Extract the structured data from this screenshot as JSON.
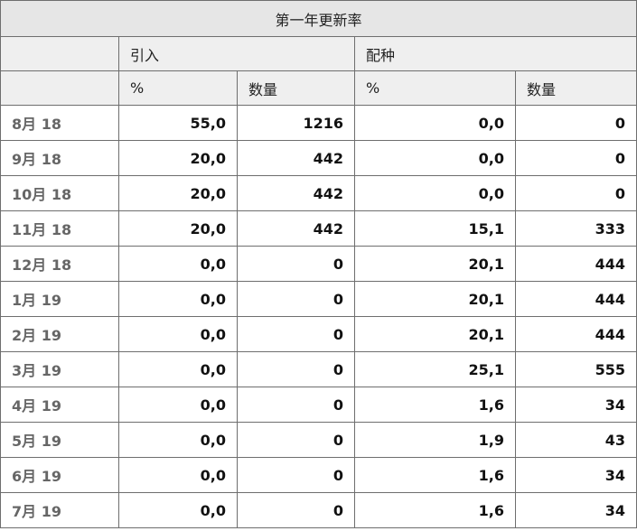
{
  "table": {
    "title": "第一年更新率",
    "group_headers": [
      "引入",
      "配种"
    ],
    "sub_headers": [
      "%",
      "数量",
      "%",
      "数量"
    ],
    "rows": [
      {
        "month": "8月 18",
        "values": [
          "55,0",
          "1216",
          "0,0",
          "0"
        ]
      },
      {
        "month": "9月 18",
        "values": [
          "20,0",
          "442",
          "0,0",
          "0"
        ]
      },
      {
        "month": "10月 18",
        "values": [
          "20,0",
          "442",
          "0,0",
          "0"
        ]
      },
      {
        "month": "11月 18",
        "values": [
          "20,0",
          "442",
          "15,1",
          "333"
        ]
      },
      {
        "month": "12月 18",
        "values": [
          "0,0",
          "0",
          "20,1",
          "444"
        ]
      },
      {
        "month": "1月 19",
        "values": [
          "0,0",
          "0",
          "20,1",
          "444"
        ]
      },
      {
        "month": "2月 19",
        "values": [
          "0,0",
          "0",
          "20,1",
          "444"
        ]
      },
      {
        "month": "3月 19",
        "values": [
          "0,0",
          "0",
          "25,1",
          "555"
        ]
      },
      {
        "month": "4月 19",
        "values": [
          "0,0",
          "0",
          "1,6",
          "34"
        ]
      },
      {
        "month": "5月 19",
        "values": [
          "0,0",
          "0",
          "1,9",
          "43"
        ]
      },
      {
        "month": "6月 19",
        "values": [
          "0,0",
          "0",
          "1,6",
          "34"
        ]
      },
      {
        "month": "7月 19",
        "values": [
          "0,0",
          "0",
          "1,6",
          "34"
        ]
      }
    ]
  }
}
